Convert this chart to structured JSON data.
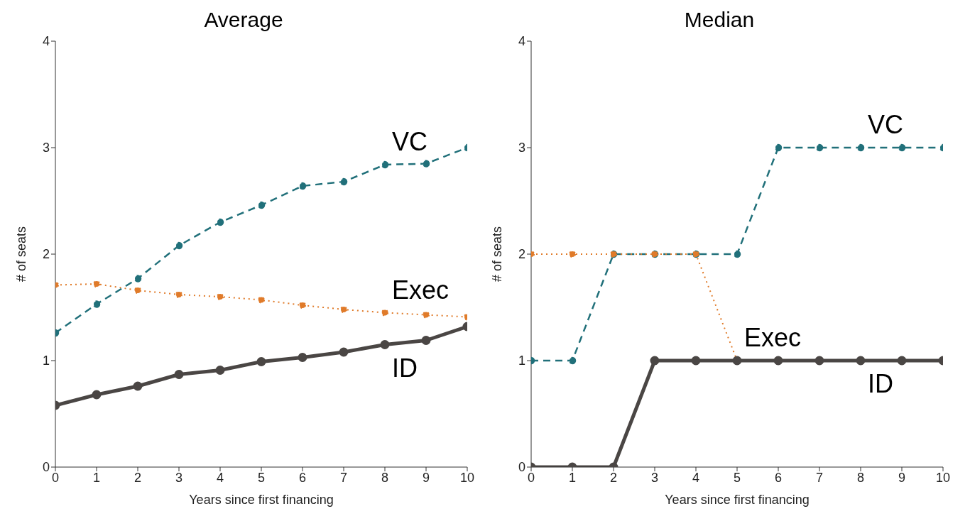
{
  "chart_data": [
    {
      "type": "line",
      "title": "Average",
      "xlabel": "Years since first financing",
      "ylabel": "# of seats",
      "x": [
        0,
        1,
        2,
        3,
        4,
        5,
        6,
        7,
        8,
        9,
        10
      ],
      "series": [
        {
          "name": "VC",
          "color": "#21707a",
          "line_style": "dashed",
          "values": [
            1.26,
            1.53,
            1.77,
            2.08,
            2.3,
            2.46,
            2.64,
            2.68,
            2.84,
            2.85,
            3.0
          ]
        },
        {
          "name": "Exec",
          "color": "#e07b2a",
          "line_style": "dotted",
          "values": [
            1.71,
            1.72,
            1.66,
            1.62,
            1.6,
            1.57,
            1.52,
            1.48,
            1.45,
            1.43,
            1.41
          ]
        },
        {
          "name": "ID",
          "color": "#4a4644",
          "line_style": "solid",
          "values": [
            0.58,
            0.68,
            0.76,
            0.87,
            0.91,
            0.99,
            1.03,
            1.08,
            1.15,
            1.19,
            1.32
          ]
        }
      ],
      "xlim": [
        0,
        10
      ],
      "xticks": [
        0,
        1,
        2,
        3,
        4,
        5,
        6,
        7,
        8,
        9,
        10
      ],
      "ylim": [
        0,
        4
      ],
      "yticks": [
        0,
        1,
        2,
        3,
        4
      ],
      "grid": false,
      "legend": false,
      "marker": "circle"
    },
    {
      "type": "line",
      "title": "Median",
      "xlabel": "Years since first financing",
      "ylabel": "# of seats",
      "x": [
        0,
        1,
        2,
        3,
        4,
        5,
        6,
        7,
        8,
        9,
        10
      ],
      "series": [
        {
          "name": "VC",
          "color": "#21707a",
          "line_style": "dashed",
          "values": [
            1,
            1,
            2,
            2,
            2,
            2,
            3,
            3,
            3,
            3,
            3
          ]
        },
        {
          "name": "Exec",
          "color": "#e07b2a",
          "line_style": "dotted",
          "values": [
            2,
            2,
            2,
            2,
            2,
            1,
            null,
            null,
            null,
            null,
            null
          ]
        },
        {
          "name": "ID",
          "color": "#4a4644",
          "line_style": "solid",
          "values": [
            0,
            0,
            0,
            1,
            1,
            1,
            1,
            1,
            1,
            1,
            1
          ]
        }
      ],
      "xlim": [
        0,
        10
      ],
      "xticks": [
        0,
        1,
        2,
        3,
        4,
        5,
        6,
        7,
        8,
        9,
        10
      ],
      "ylim": [
        0,
        4
      ],
      "yticks": [
        0,
        1,
        2,
        3,
        4
      ],
      "grid": false,
      "legend": false,
      "marker": "circle"
    }
  ]
}
